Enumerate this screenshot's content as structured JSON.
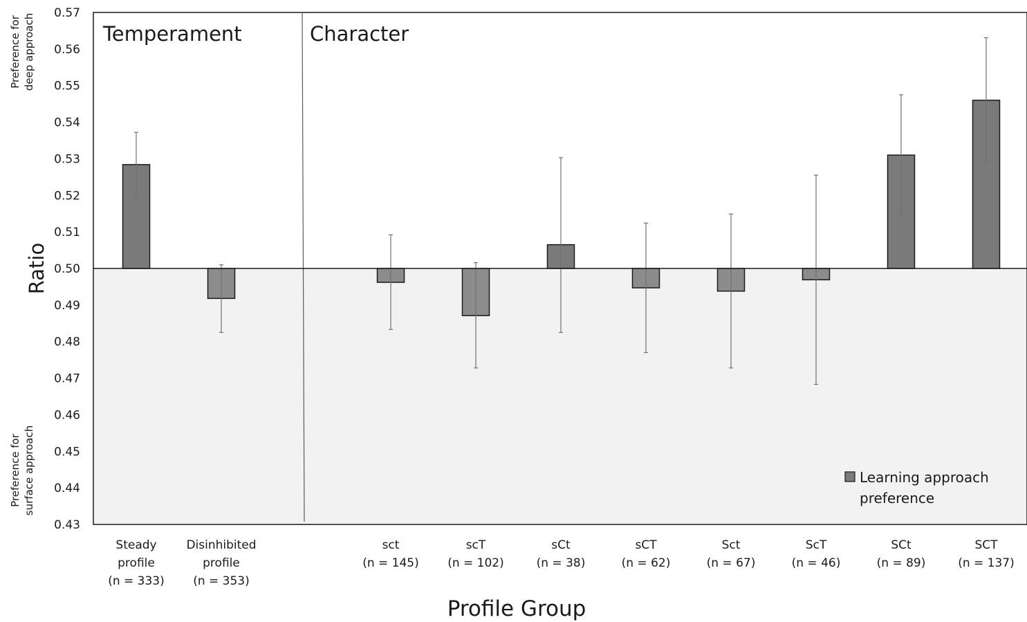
{
  "chart_data": {
    "type": "bar",
    "ylabel": "Ratio",
    "xlabel": "Profile Group",
    "ylim": [
      0.43,
      0.57
    ],
    "y_ticks": [
      "0.43",
      "0.44",
      "0.45",
      "0.46",
      "0.47",
      "0.48",
      "0.49",
      "0.50",
      "0.51",
      "0.52",
      "0.53",
      "0.54",
      "0.55",
      "0.56",
      "0.57"
    ],
    "baseline": 0.5,
    "panels": [
      {
        "title": "Temperament"
      },
      {
        "title": "Character"
      }
    ],
    "y_annotations": {
      "top": [
        "Preference for",
        "deep approach"
      ],
      "bottom": [
        "Preference for",
        "surface approach"
      ]
    },
    "legend": {
      "label": [
        "Learning approach",
        "preference"
      ],
      "position": "bottom-right"
    },
    "series": [
      {
        "name": "Learning approach preference",
        "points": [
          {
            "label": [
              "Steady",
              "profile",
              "(n = 333)"
            ],
            "panel": 0,
            "value": 0.5284,
            "error_low": 0.5196,
            "error_high": 0.5372
          },
          {
            "label": [
              "Disinhibited",
              "profile",
              "(n = 353)"
            ],
            "panel": 0,
            "value": 0.4918,
            "error_low": 0.4825,
            "error_high": 0.501
          },
          {
            "label": [
              "sct",
              "(n = 145)"
            ],
            "panel": 1,
            "value": 0.4962,
            "error_low": 0.4833,
            "error_high": 0.5092
          },
          {
            "label": [
              "scT",
              "(n = 102)"
            ],
            "panel": 1,
            "value": 0.4871,
            "error_low": 0.4728,
            "error_high": 0.5016
          },
          {
            "label": [
              "sCt",
              "(n = 38)"
            ],
            "panel": 1,
            "value": 0.5065,
            "error_low": 0.4825,
            "error_high": 0.5303
          },
          {
            "label": [
              "sCT",
              "(n = 62)"
            ],
            "panel": 1,
            "value": 0.4947,
            "error_low": 0.477,
            "error_high": 0.5124
          },
          {
            "label": [
              "Sct",
              "(n = 67)"
            ],
            "panel": 1,
            "value": 0.4938,
            "error_low": 0.4728,
            "error_high": 0.5149
          },
          {
            "label": [
              "ScT",
              "(n = 46)"
            ],
            "panel": 1,
            "value": 0.4969,
            "error_low": 0.4683,
            "error_high": 0.5255
          },
          {
            "label": [
              "SCt",
              "(n = 89)"
            ],
            "panel": 1,
            "value": 0.531,
            "error_low": 0.5147,
            "error_high": 0.5475
          },
          {
            "label": [
              "SCT",
              "(n = 137)"
            ],
            "panel": 1,
            "value": 0.546,
            "error_low": 0.529,
            "error_high": 0.5631
          }
        ]
      }
    ]
  },
  "colors": {
    "bar_above": "#7a7a7a",
    "bar_below": "#8c8c8c",
    "bar_border": "#1a1a1a",
    "lower_region": "#f2f2f2",
    "error_bar": "#707070",
    "axis": "#1a1a1a"
  }
}
